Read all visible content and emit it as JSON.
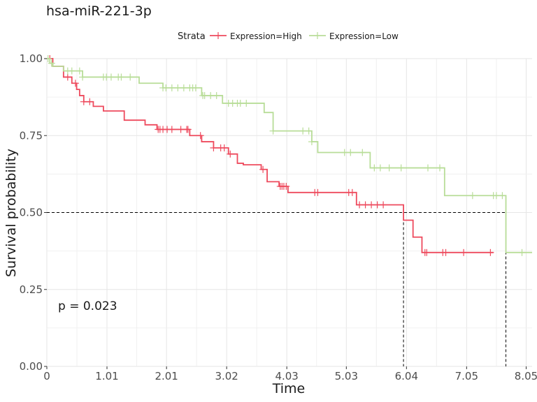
{
  "chart_data": {
    "type": "line",
    "title": "hsa-miR-221-3p",
    "xlabel": "Time",
    "ylabel": "Survival probability",
    "xlim": [
      0,
      8.15
    ],
    "ylim": [
      0,
      1
    ],
    "x_ticks": [
      0,
      1.01,
      2.01,
      3.02,
      4.03,
      5.03,
      6.04,
      7.05,
      8.05
    ],
    "x_tick_labels": [
      "0",
      "1.01",
      "2.01",
      "3.02",
      "4.03",
      "5.03",
      "6.04",
      "7.05",
      "8.05"
    ],
    "y_ticks": [
      0,
      0.25,
      0.5,
      0.75,
      1
    ],
    "y_tick_labels": [
      "0.00",
      "0.25",
      "0.50",
      "0.75",
      "1.00"
    ],
    "grid": true,
    "legend": {
      "title": "Strata",
      "placement": "top",
      "entries": [
        "Expression=High",
        "Expression=Low"
      ]
    },
    "annotation": "p = 0.023",
    "median_lines": [
      {
        "series": "Expression=High",
        "x": 5.99,
        "y": 0.5
      },
      {
        "series": "Expression=Low",
        "x": 7.71,
        "y": 0.5
      }
    ],
    "series": [
      {
        "name": "Expression=High",
        "color": "#EE4A5D",
        "steps": [
          [
            0,
            1.0
          ],
          [
            0.1,
            0.975
          ],
          [
            0.28,
            0.94
          ],
          [
            0.42,
            0.92
          ],
          [
            0.5,
            0.9
          ],
          [
            0.55,
            0.88
          ],
          [
            0.62,
            0.86
          ],
          [
            0.78,
            0.845
          ],
          [
            0.95,
            0.83
          ],
          [
            1.3,
            0.8
          ],
          [
            1.65,
            0.785
          ],
          [
            1.85,
            0.77
          ],
          [
            2.4,
            0.75
          ],
          [
            2.6,
            0.73
          ],
          [
            2.8,
            0.71
          ],
          [
            3.05,
            0.69
          ],
          [
            3.2,
            0.66
          ],
          [
            3.3,
            0.655
          ],
          [
            3.6,
            0.64
          ],
          [
            3.7,
            0.6
          ],
          [
            3.9,
            0.585
          ],
          [
            4.05,
            0.565
          ],
          [
            5.2,
            0.525
          ],
          [
            5.99,
            0.475
          ],
          [
            6.15,
            0.42
          ],
          [
            6.3,
            0.37
          ],
          [
            7.5,
            0.37
          ]
        ],
        "censor_x": [
          0.05,
          0.35,
          0.48,
          0.62,
          0.72,
          1.87,
          1.9,
          1.95,
          2.02,
          2.1,
          2.25,
          2.35,
          2.37,
          2.58,
          2.8,
          2.92,
          2.98,
          3.08,
          3.63,
          3.92,
          3.95,
          3.98,
          4.02,
          4.5,
          4.55,
          5.07,
          5.13,
          5.25,
          5.35,
          5.45,
          5.55,
          5.65,
          6.35,
          6.38,
          6.65,
          6.7,
          7.0,
          7.45
        ]
      },
      {
        "name": "Expression=Low",
        "color": "#B8DD98",
        "steps": [
          [
            0,
            1.0
          ],
          [
            0.05,
            0.985
          ],
          [
            0.1,
            0.975
          ],
          [
            0.28,
            0.96
          ],
          [
            0.6,
            0.94
          ],
          [
            1.55,
            0.92
          ],
          [
            1.95,
            0.905
          ],
          [
            2.6,
            0.88
          ],
          [
            2.95,
            0.855
          ],
          [
            3.65,
            0.825
          ],
          [
            3.8,
            0.765
          ],
          [
            4.45,
            0.73
          ],
          [
            4.55,
            0.695
          ],
          [
            5.43,
            0.645
          ],
          [
            6.68,
            0.555
          ],
          [
            7.71,
            0.37
          ],
          [
            8.15,
            0.37
          ]
        ],
        "censor_x": [
          0.02,
          0.08,
          0.35,
          0.42,
          0.55,
          0.6,
          0.95,
          1.0,
          1.08,
          1.2,
          1.25,
          1.4,
          1.95,
          2.0,
          2.1,
          2.2,
          2.3,
          2.4,
          2.45,
          2.5,
          2.62,
          2.65,
          2.75,
          2.85,
          3.05,
          3.12,
          3.2,
          3.25,
          3.35,
          3.8,
          4.3,
          4.4,
          4.45,
          5.0,
          5.1,
          5.3,
          5.5,
          5.6,
          5.75,
          5.95,
          6.4,
          6.6,
          7.15,
          7.5,
          7.55,
          7.65,
          7.98
        ]
      }
    ]
  }
}
